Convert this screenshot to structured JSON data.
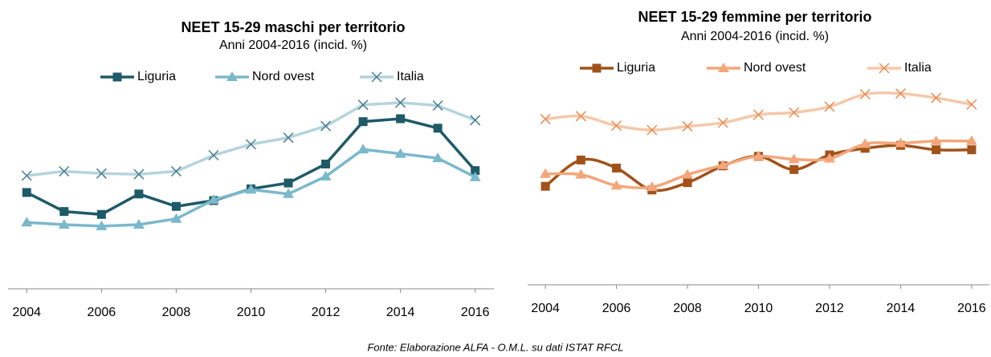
{
  "chart_data": [
    {
      "type": "line",
      "title": "NEET 15-29 maschi per territorio",
      "subtitle": "Anni 2004-2016  (incid. %)",
      "x": [
        2004,
        2005,
        2006,
        2007,
        2008,
        2009,
        2010,
        2011,
        2012,
        2013,
        2014,
        2015,
        2016
      ],
      "xlim": [
        2003.5,
        2016.5
      ],
      "xticks": [
        2004,
        2006,
        2008,
        2010,
        2012,
        2014,
        2016
      ],
      "ylim": [
        0,
        28
      ],
      "smooth": false,
      "series": [
        {
          "name": "Liguria",
          "color": "#1f5a68",
          "marker": "square",
          "values": [
            13.4,
            10.8,
            10.4,
            13.2,
            11.5,
            12.3,
            13.9,
            14.7,
            17.3,
            23.1,
            23.5,
            22.2,
            16.4
          ]
        },
        {
          "name": "Nord ovest",
          "color": "#7ab8cc",
          "marker": "triangle",
          "values": [
            9.3,
            9.0,
            8.8,
            9.0,
            9.8,
            12.4,
            13.8,
            13.2,
            15.6,
            19.3,
            18.7,
            18.1,
            15.5
          ]
        },
        {
          "name": "Italia",
          "color": "#b4d4de",
          "marker": "x",
          "values": [
            15.7,
            16.3,
            16.0,
            15.9,
            16.3,
            18.5,
            20.0,
            20.9,
            22.5,
            25.4,
            25.7,
            25.3,
            23.3
          ]
        }
      ]
    },
    {
      "type": "line",
      "title": "NEET 15-29 femmine per territorio",
      "subtitle": "Anni 2004-2016  (incid. %)",
      "x": [
        2004,
        2005,
        2006,
        2007,
        2008,
        2009,
        2010,
        2011,
        2012,
        2013,
        2014,
        2015,
        2016
      ],
      "xlim": [
        2003.5,
        2016.5
      ],
      "xticks": [
        2004,
        2006,
        2008,
        2010,
        2012,
        2014,
        2016
      ],
      "ylim": [
        0,
        28
      ],
      "smooth": true,
      "series": [
        {
          "name": "Liguria",
          "color": "#a0521a",
          "marker": "square",
          "values": [
            13.7,
            17.3,
            16.2,
            13.2,
            14.2,
            16.5,
            17.8,
            16.0,
            18.0,
            18.9,
            19.3,
            18.7,
            18.7
          ]
        },
        {
          "name": "Nord ovest",
          "color": "#f4a67a",
          "marker": "triangle",
          "values": [
            15.4,
            15.3,
            13.8,
            13.6,
            15.3,
            16.6,
            17.8,
            17.4,
            17.5,
            19.5,
            19.6,
            19.9,
            19.9
          ]
        },
        {
          "name": "Italia",
          "color": "#f5c8aa",
          "marker": "x",
          "values": [
            22.9,
            23.3,
            22.0,
            21.4,
            21.9,
            22.4,
            23.5,
            23.8,
            24.6,
            26.3,
            26.4,
            25.8,
            24.9
          ]
        }
      ]
    }
  ],
  "source": "Fonte: Elaborazione ALFA - O.M.L. su dati ISTAT RFCL"
}
